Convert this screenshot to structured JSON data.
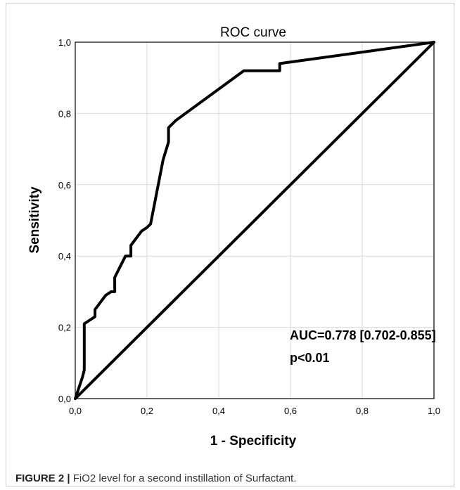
{
  "chart_data": {
    "type": "line",
    "title": "ROC curve",
    "xlabel": "1 - Specificity",
    "ylabel": "Sensitivity",
    "xlim": [
      0,
      1
    ],
    "ylim": [
      0,
      1
    ],
    "xticks": [
      "0,0",
      "0,2",
      "0,4",
      "0,6",
      "0,8",
      "1,0"
    ],
    "yticks": [
      "0,0",
      "0,2",
      "0,4",
      "0,6",
      "0,8",
      "1,0"
    ],
    "grid": true,
    "annotation_lines": [
      "AUC=0.778 [0.702-0.855]",
      "p<0.01"
    ],
    "series": [
      {
        "x": [
          0,
          0.01,
          0.02,
          0.025,
          0.025,
          0.04,
          0.055,
          0.055,
          0.07,
          0.085,
          0.1,
          0.11,
          0.11,
          0.13,
          0.14,
          0.155,
          0.155,
          0.185,
          0.2,
          0.21,
          0.245,
          0.26,
          0.26,
          0.28,
          0.47,
          0.57,
          0.57,
          1.0
        ],
        "y": [
          0,
          0.03,
          0.06,
          0.08,
          0.21,
          0.22,
          0.23,
          0.25,
          0.27,
          0.29,
          0.3,
          0.3,
          0.34,
          0.38,
          0.4,
          0.4,
          0.43,
          0.47,
          0.48,
          0.49,
          0.67,
          0.72,
          0.76,
          0.78,
          0.92,
          0.92,
          0.94,
          1.0
        ]
      },
      {
        "x": [
          0,
          1
        ],
        "y": [
          0,
          1
        ]
      }
    ]
  },
  "caption": {
    "label": "FIGURE 2 |",
    "text": " FiO2 level for a second instillation of Surfactant."
  }
}
